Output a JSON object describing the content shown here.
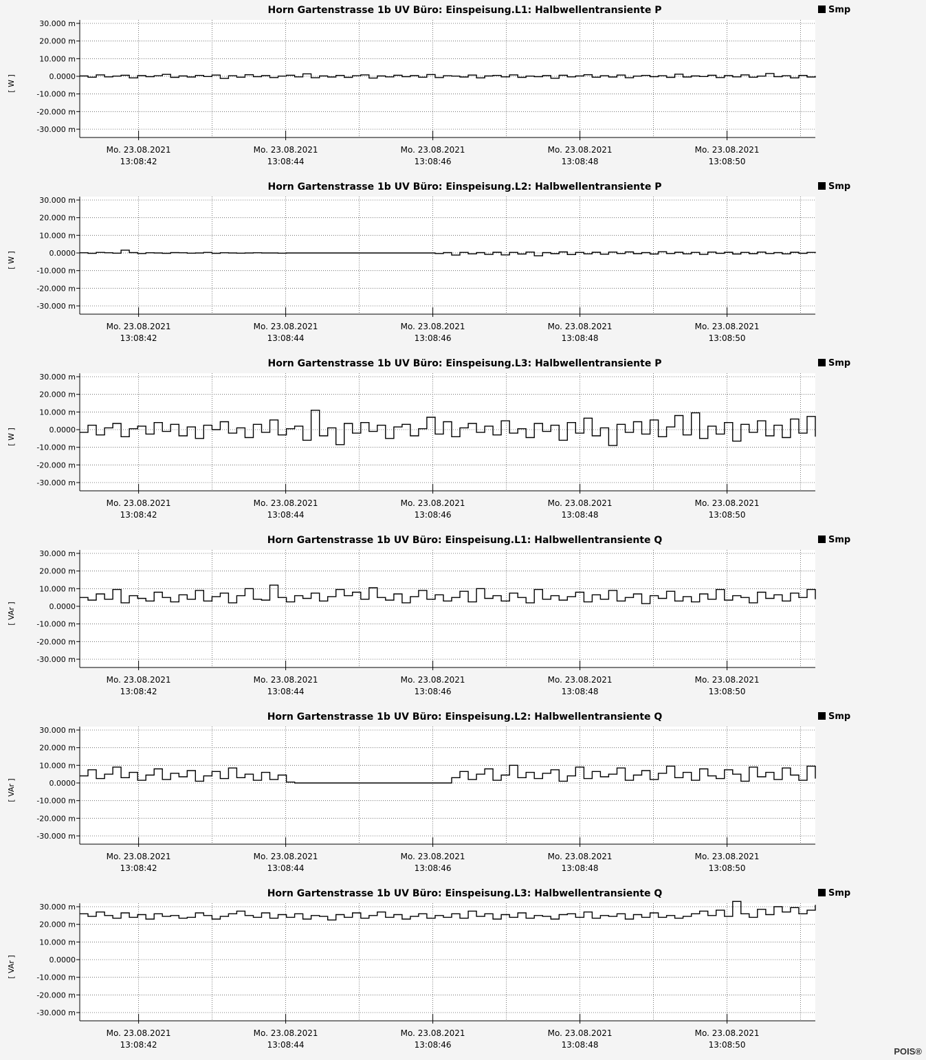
{
  "brand": "POIS®",
  "chart_data": [
    {
      "type": "line",
      "title": "Horn Gartenstrasse 1b UV Büro:   Einspeisung.L1:   Halbwellentransiente P",
      "ylabel": "[ W ]",
      "legend": "Smp",
      "legend_position": "top-right",
      "ylim": [
        -30,
        30
      ],
      "yticks": [
        "30.000 m",
        "20.000 m",
        "10.000 m",
        "0.0000",
        "-10.000 m",
        "-20.000 m",
        "-30.000 m"
      ],
      "xticks": [
        [
          "Mo. 23.08.2021",
          "13:08:42"
        ],
        [
          "Mo. 23.08.2021",
          "13:08:44"
        ],
        [
          "Mo. 23.08.2021",
          "13:08:46"
        ],
        [
          "Mo. 23.08.2021",
          "13:08:48"
        ],
        [
          "Mo. 23.08.2021",
          "13:08:50"
        ]
      ],
      "xlim": [
        41.2,
        51.2
      ],
      "grid": true,
      "series": [
        {
          "values": [
            0.2,
            -0.5,
            0.8,
            -0.3,
            0.1,
            0.6,
            -0.9,
            0.4,
            -0.2,
            0.3,
            1.1,
            -0.6,
            0.2,
            -0.4,
            0.5,
            -0.1,
            0.7,
            -1.2,
            0.3,
            -0.5,
            0.9,
            -0.2,
            0.4,
            -0.7,
            0.1,
            0.6,
            -0.3,
            1.4,
            -0.8,
            0.2,
            -0.4,
            0.5,
            -0.6,
            0.3,
            0.8,
            -1.0,
            0.2,
            -0.3,
            0.6,
            -0.2,
            0.4,
            -0.5,
            1.0,
            -0.7,
            0.3,
            0.1,
            -0.4,
            0.7,
            -0.9,
            0.2,
            0.5,
            -0.3,
            0.8,
            -0.6,
            0.1,
            -0.2,
            0.4,
            -1.1,
            0.6,
            -0.3,
            0.2,
            0.9,
            -0.5,
            0.3,
            -0.4,
            0.7,
            -0.8,
            0.1,
            0.5,
            -0.2,
            0.3,
            -0.6,
            1.2,
            -0.4,
            0.2,
            -0.1,
            0.6,
            -0.7,
            0.4,
            -0.3,
            0.8,
            -0.5,
            0.1,
            1.6,
            -0.2,
            0.3,
            -0.9,
            0.5,
            -0.4,
            0.2
          ]
        }
      ]
    },
    {
      "type": "line",
      "title": "Horn Gartenstrasse 1b UV Büro:   Einspeisung.L2:   Halbwellentransiente P",
      "ylabel": "[ W ]",
      "legend": "Smp",
      "legend_position": "top-right",
      "ylim": [
        -30,
        30
      ],
      "yticks": [
        "30.000 m",
        "20.000 m",
        "10.000 m",
        "0.0000",
        "-10.000 m",
        "-20.000 m",
        "-30.000 m"
      ],
      "xticks": [
        [
          "Mo. 23.08.2021",
          "13:08:42"
        ],
        [
          "Mo. 23.08.2021",
          "13:08:44"
        ],
        [
          "Mo. 23.08.2021",
          "13:08:46"
        ],
        [
          "Mo. 23.08.2021",
          "13:08:48"
        ],
        [
          "Mo. 23.08.2021",
          "13:08:50"
        ]
      ],
      "xlim": [
        41.2,
        51.2
      ],
      "grid": true,
      "series": [
        {
          "values": [
            0.1,
            -0.2,
            0.3,
            0.1,
            -0.1,
            1.6,
            0.2,
            -0.3,
            0.1,
            0.0,
            -0.2,
            0.2,
            0.1,
            -0.1,
            0.0,
            0.3,
            -0.2,
            0.1,
            0.0,
            -0.1,
            0.0,
            0.1,
            0.0,
            0.0,
            -0.1,
            0.0,
            0.0,
            0.0,
            0.0,
            0.0,
            0.0,
            0.0,
            0.0,
            0.0,
            0.0,
            0.0,
            0.0,
            0.0,
            0.0,
            0.0,
            0.0,
            0.0,
            0.0,
            -0.3,
            0.2,
            -1.2,
            0.3,
            -0.5,
            0.2,
            -0.8,
            0.4,
            -1.1,
            0.3,
            -0.6,
            0.5,
            -1.6,
            0.2,
            -0.4,
            0.6,
            -0.9,
            0.3,
            -0.5,
            0.4,
            -0.7,
            0.5,
            -0.3,
            0.6,
            -0.4,
            0.2,
            -0.6,
            0.7,
            -0.3,
            0.4,
            -0.5,
            0.3,
            -0.8,
            0.5,
            -0.2,
            0.4,
            -0.6,
            0.3,
            -0.4,
            0.5,
            -0.3,
            0.2,
            -0.5,
            0.4,
            -0.2,
            0.3,
            -0.1
          ]
        }
      ]
    },
    {
      "type": "line",
      "title": "Horn Gartenstrasse 1b UV Büro:   Einspeisung.L3:   Halbwellentransiente P",
      "ylabel": "[ W ]",
      "legend": "Smp",
      "legend_position": "top-right",
      "ylim": [
        -30,
        30
      ],
      "yticks": [
        "30.000 m",
        "20.000 m",
        "10.000 m",
        "0.0000",
        "-10.000 m",
        "-20.000 m",
        "-30.000 m"
      ],
      "xticks": [
        [
          "Mo. 23.08.2021",
          "13:08:42"
        ],
        [
          "Mo. 23.08.2021",
          "13:08:44"
        ],
        [
          "Mo. 23.08.2021",
          "13:08:46"
        ],
        [
          "Mo. 23.08.2021",
          "13:08:48"
        ],
        [
          "Mo. 23.08.2021",
          "13:08:50"
        ]
      ],
      "xlim": [
        41.2,
        51.2
      ],
      "grid": true,
      "series": [
        {
          "values": [
            -1.5,
            2.5,
            -3.0,
            1.0,
            3.5,
            -4.0,
            0.5,
            2.0,
            -2.5,
            4.0,
            -1.0,
            3.0,
            -3.5,
            1.5,
            -5.0,
            2.5,
            0.0,
            4.5,
            -2.0,
            1.0,
            -4.5,
            3.0,
            -1.5,
            5.5,
            -3.0,
            0.5,
            2.0,
            -6.0,
            11.0,
            -3.5,
            1.0,
            -8.5,
            3.5,
            -2.0,
            4.0,
            -1.0,
            2.5,
            -5.0,
            1.5,
            3.0,
            -3.5,
            0.5,
            7.0,
            -2.5,
            4.5,
            -4.0,
            1.0,
            3.5,
            -1.5,
            2.0,
            -3.0,
            5.0,
            -2.0,
            0.5,
            -4.5,
            3.5,
            -1.0,
            2.5,
            -6.0,
            4.0,
            -2.0,
            6.5,
            -3.5,
            1.0,
            -9.0,
            3.0,
            -1.5,
            4.5,
            -2.5,
            5.5,
            -4.0,
            1.5,
            8.0,
            -3.0,
            9.5,
            -5.0,
            2.0,
            -2.5,
            4.0,
            -6.5,
            3.0,
            -1.5,
            5.0,
            -3.5,
            2.5,
            -4.5,
            6.0,
            -2.0,
            7.5,
            -4.0
          ]
        }
      ]
    },
    {
      "type": "line",
      "title": "Horn Gartenstrasse 1b UV Büro:   Einspeisung.L1:   Halbwellentransiente Q",
      "ylabel": "[ VAr ]",
      "legend": "Smp",
      "legend_position": "top-right",
      "ylim": [
        -30,
        30
      ],
      "yticks": [
        "30.000 m",
        "20.000 m",
        "10.000 m",
        "0.0000",
        "-10.000 m",
        "-20.000 m",
        "-30.000 m"
      ],
      "xticks": [
        [
          "Mo. 23.08.2021",
          "13:08:42"
        ],
        [
          "Mo. 23.08.2021",
          "13:08:44"
        ],
        [
          "Mo. 23.08.2021",
          "13:08:46"
        ],
        [
          "Mo. 23.08.2021",
          "13:08:48"
        ],
        [
          "Mo. 23.08.2021",
          "13:08:50"
        ]
      ],
      "xlim": [
        41.2,
        51.2
      ],
      "grid": true,
      "series": [
        {
          "values": [
            5.0,
            3.5,
            7.0,
            4.0,
            9.5,
            2.0,
            6.0,
            4.5,
            3.0,
            8.0,
            5.0,
            2.5,
            6.5,
            4.0,
            9.0,
            3.0,
            5.5,
            7.5,
            2.0,
            6.0,
            10.0,
            4.0,
            3.5,
            12.0,
            5.0,
            2.5,
            6.0,
            4.5,
            7.5,
            3.0,
            5.5,
            9.5,
            6.0,
            8.0,
            4.0,
            10.5,
            5.0,
            3.5,
            7.0,
            2.0,
            5.5,
            9.0,
            4.0,
            6.5,
            3.0,
            5.0,
            8.5,
            2.5,
            10.0,
            4.5,
            6.0,
            3.0,
            7.5,
            5.0,
            2.0,
            9.5,
            4.0,
            6.0,
            3.5,
            5.5,
            8.0,
            2.5,
            6.5,
            4.0,
            9.0,
            3.0,
            5.0,
            7.0,
            1.5,
            6.0,
            4.5,
            8.5,
            3.0,
            5.5,
            2.5,
            7.0,
            4.0,
            9.5,
            3.5,
            6.0,
            5.0,
            2.0,
            8.0,
            4.5,
            6.5,
            3.0,
            7.5,
            5.0,
            9.5,
            4.0
          ]
        }
      ]
    },
    {
      "type": "line",
      "title": "Horn Gartenstrasse 1b UV Büro:   Einspeisung.L2:   Halbwellentransiente Q",
      "ylabel": "[ VAr ]",
      "legend": "Smp",
      "legend_position": "top-right",
      "ylim": [
        -30,
        30
      ],
      "yticks": [
        "30.000 m",
        "20.000 m",
        "10.000 m",
        "0.0000",
        "-10.000 m",
        "-20.000 m",
        "-30.000 m"
      ],
      "xticks": [
        [
          "Mo. 23.08.2021",
          "13:08:42"
        ],
        [
          "Mo. 23.08.2021",
          "13:08:44"
        ],
        [
          "Mo. 23.08.2021",
          "13:08:46"
        ],
        [
          "Mo. 23.08.2021",
          "13:08:48"
        ],
        [
          "Mo. 23.08.2021",
          "13:08:50"
        ]
      ],
      "xlim": [
        41.2,
        51.2
      ],
      "grid": true,
      "series": [
        {
          "values": [
            4.0,
            7.5,
            2.5,
            5.0,
            9.0,
            3.0,
            6.0,
            1.5,
            4.5,
            8.0,
            2.0,
            5.5,
            3.5,
            7.0,
            1.0,
            4.0,
            6.5,
            2.5,
            8.5,
            3.0,
            5.0,
            1.5,
            6.0,
            2.0,
            4.5,
            0.5,
            0.0,
            0.0,
            0.0,
            0.0,
            0.0,
            0.0,
            0.0,
            0.0,
            0.0,
            0.0,
            0.0,
            0.0,
            0.0,
            0.0,
            0.0,
            0.0,
            0.0,
            0.0,
            0.0,
            3.0,
            6.5,
            2.0,
            5.0,
            8.0,
            1.5,
            4.5,
            10.0,
            3.0,
            6.0,
            2.5,
            5.5,
            7.5,
            1.0,
            4.0,
            9.0,
            2.5,
            6.5,
            3.5,
            5.0,
            8.5,
            1.5,
            4.5,
            7.0,
            2.0,
            5.5,
            9.5,
            3.0,
            6.0,
            1.5,
            8.0,
            4.0,
            2.5,
            7.5,
            5.0,
            1.0,
            9.0,
            3.5,
            6.0,
            2.0,
            8.5,
            4.5,
            1.5,
            9.5,
            2.5
          ]
        }
      ]
    },
    {
      "type": "line",
      "title": "Horn Gartenstrasse 1b UV Büro:   Einspeisung.L3:   Halbwellentransiente Q",
      "ylabel": "[ VAr ]",
      "legend": "Smp",
      "legend_position": "top-right",
      "ylim": [
        -30,
        30
      ],
      "yticks": [
        "30.000 m",
        "20.000 m",
        "10.000 m",
        "0.0000",
        "-10.000 m",
        "-20.000 m",
        "-30.000 m"
      ],
      "xticks": [
        [
          "Mo. 23.08.2021",
          "13:08:42"
        ],
        [
          "Mo. 23.08.2021",
          "13:08:44"
        ],
        [
          "Mo. 23.08.2021",
          "13:08:46"
        ],
        [
          "Mo. 23.08.2021",
          "13:08:48"
        ],
        [
          "Mo. 23.08.2021",
          "13:08:50"
        ]
      ],
      "xlim": [
        41.2,
        51.2
      ],
      "grid": true,
      "series": [
        {
          "values": [
            26.0,
            24.5,
            27.0,
            25.0,
            23.5,
            26.5,
            24.0,
            25.5,
            23.0,
            26.0,
            24.5,
            25.0,
            23.5,
            24.0,
            26.5,
            25.0,
            23.0,
            24.5,
            26.0,
            27.5,
            25.0,
            24.0,
            26.5,
            23.5,
            25.5,
            24.0,
            26.0,
            23.0,
            25.0,
            24.5,
            22.5,
            25.5,
            24.0,
            26.5,
            23.5,
            25.0,
            27.0,
            24.0,
            25.5,
            23.0,
            24.5,
            26.0,
            23.5,
            25.0,
            24.0,
            26.0,
            23.5,
            27.5,
            24.5,
            26.0,
            23.0,
            25.5,
            24.0,
            26.5,
            23.5,
            25.0,
            24.5,
            23.0,
            25.5,
            26.0,
            24.0,
            27.0,
            23.5,
            25.0,
            24.5,
            26.0,
            23.0,
            25.5,
            24.0,
            26.5,
            24.0,
            25.0,
            23.5,
            24.5,
            26.0,
            27.5,
            25.0,
            28.0,
            24.5,
            33.0,
            26.0,
            24.0,
            28.5,
            25.5,
            30.0,
            27.0,
            29.5,
            26.0,
            28.0,
            31.0
          ]
        }
      ]
    }
  ]
}
